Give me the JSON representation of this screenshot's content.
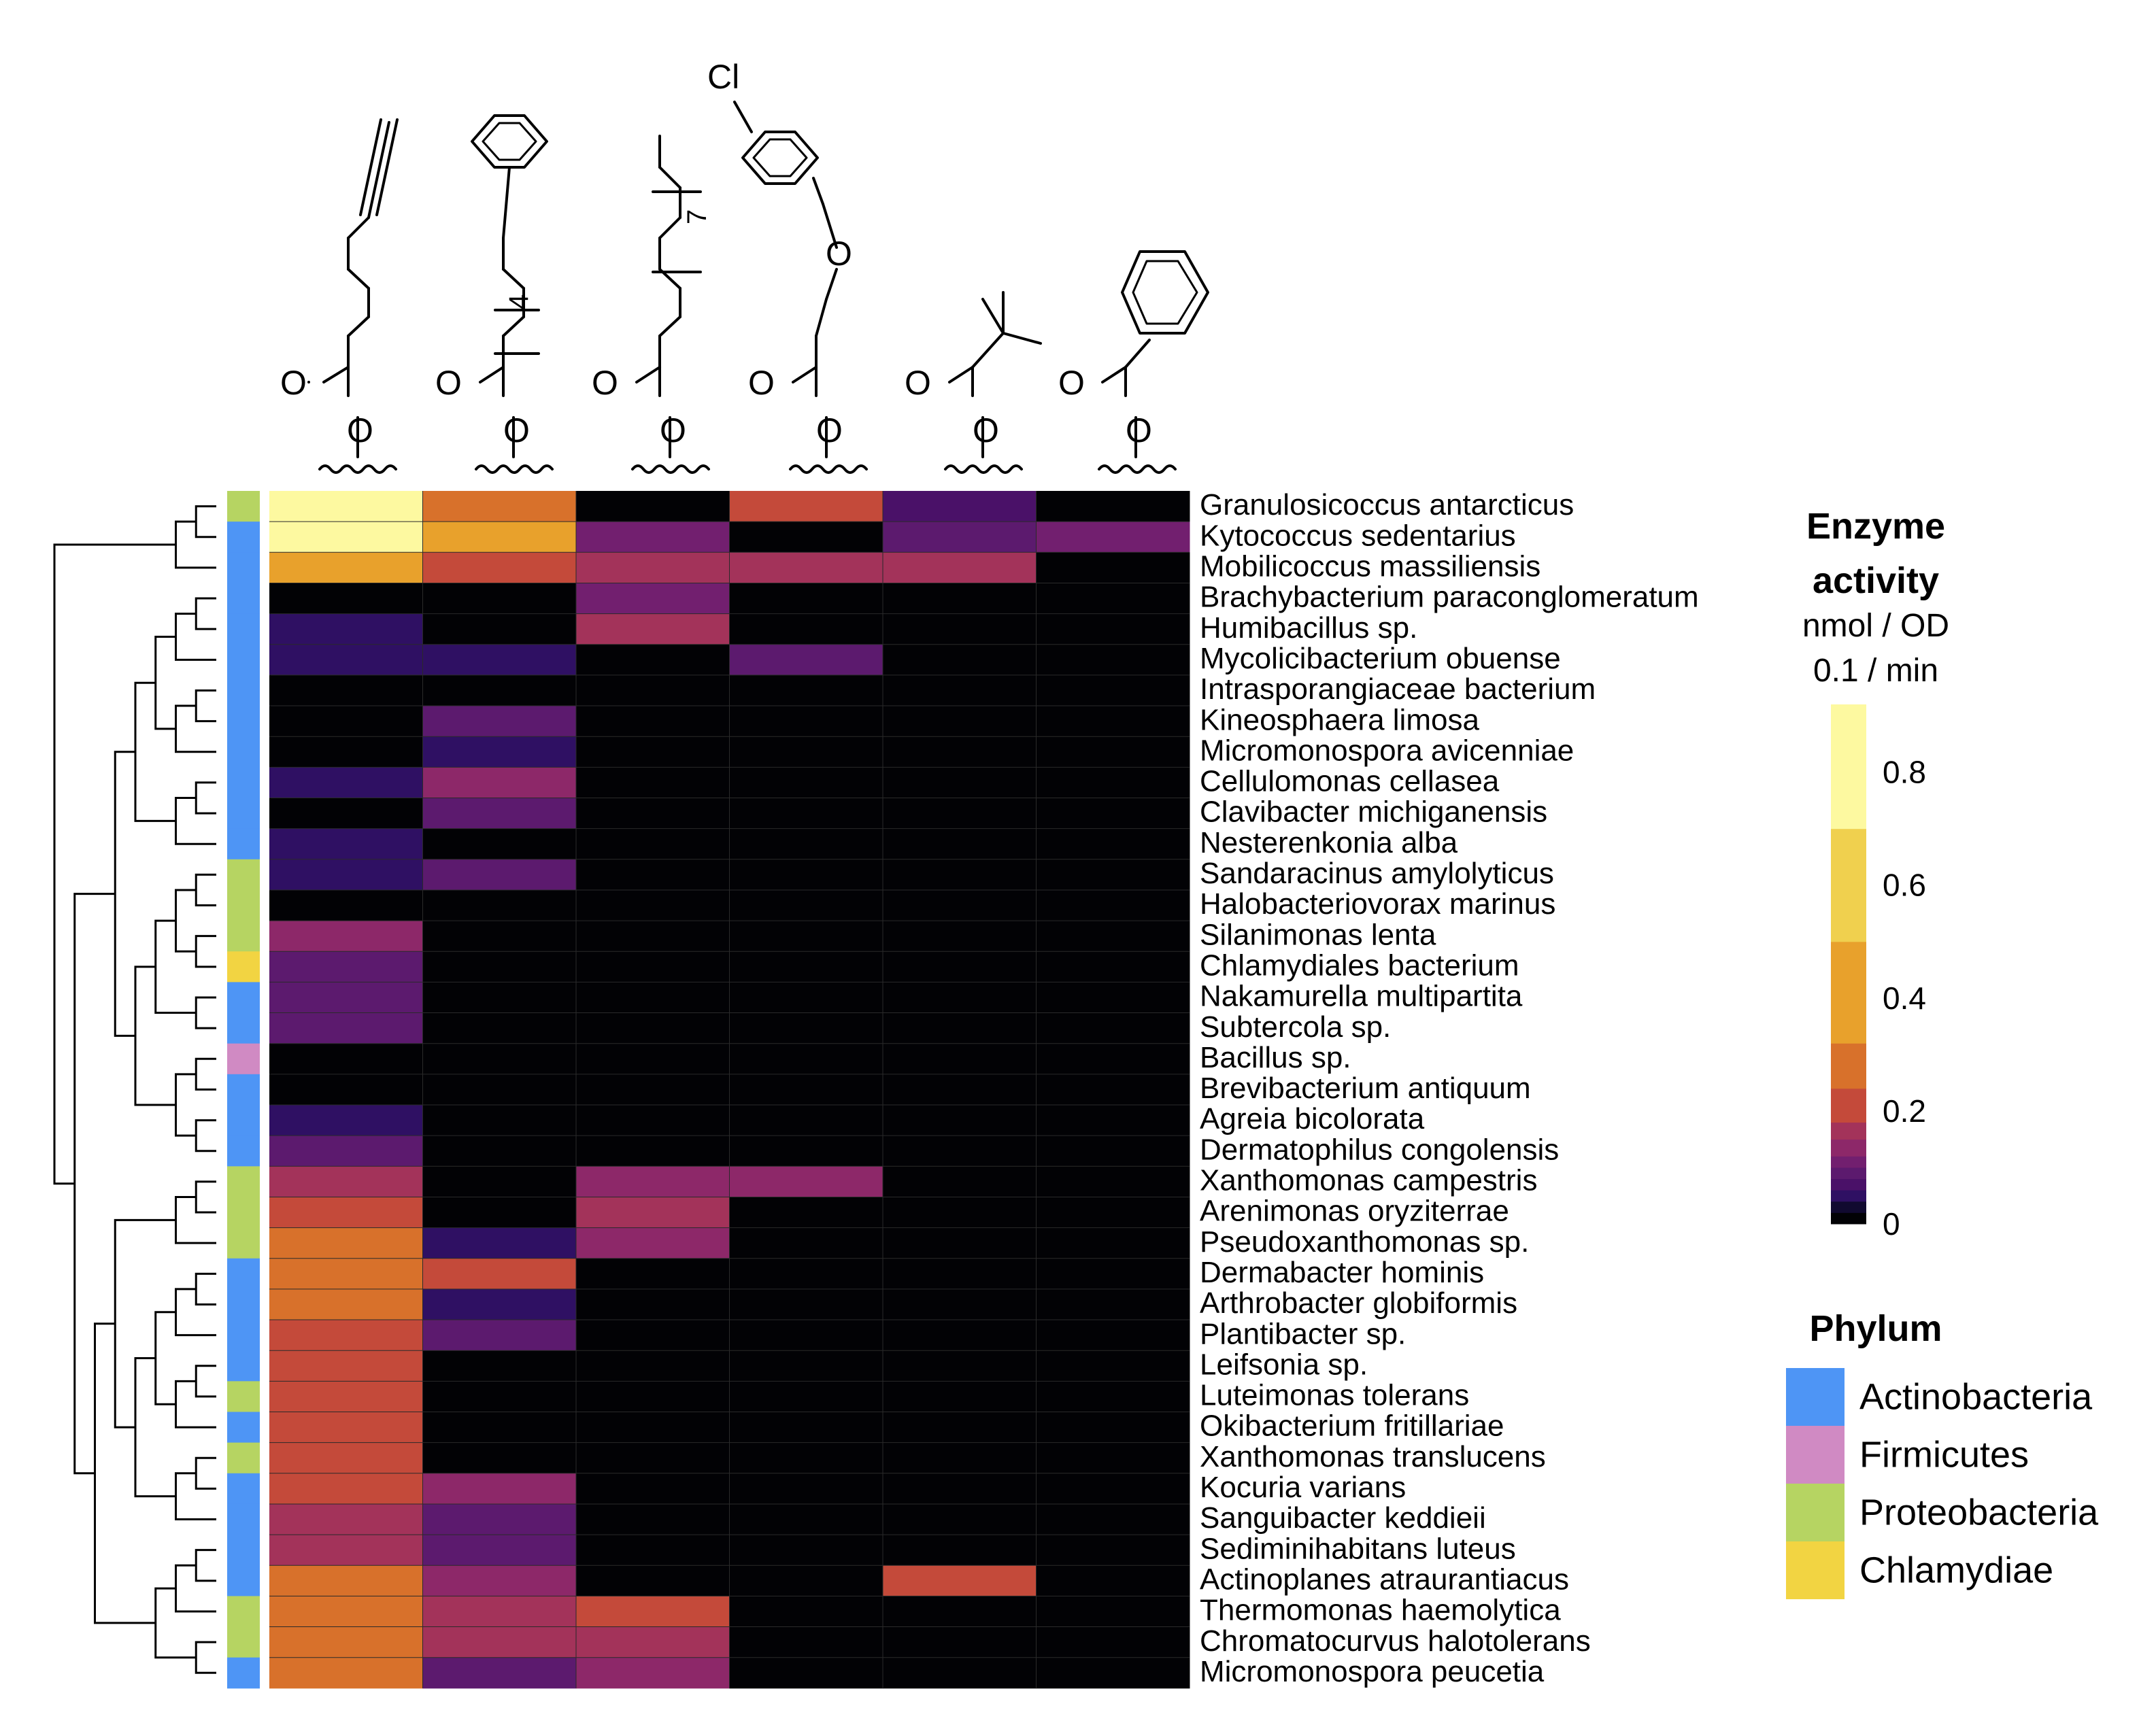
{
  "chart_data": {
    "type": "heatmap",
    "columns": [
      {
        "id": "c1",
        "structure": "hex-5-ynoate"
      },
      {
        "id": "c2",
        "structure": "phenylalkanoate",
        "label": "4"
      },
      {
        "id": "c3",
        "structure": "long-chain alkanoate",
        "label": "7"
      },
      {
        "id": "c4",
        "structure": "4-chlorophenoxy propanoate",
        "label": "Cl"
      },
      {
        "id": "c5",
        "structure": "pivalate"
      },
      {
        "id": "c6",
        "structure": "benzoate"
      }
    ],
    "chem_labels": {
      "O": "O",
      "Cl": "Cl",
      "n4": "4",
      "n7": "7"
    },
    "rows": [
      {
        "name": "Granulosicoccus antarcticus",
        "phylum": "Proteobacteria",
        "values": [
          0.9,
          0.25,
          0,
          0.2,
          0.06,
          0
        ]
      },
      {
        "name": "Kytococcus sedentarius",
        "phylum": "Actinobacteria",
        "values": [
          0.9,
          0.35,
          0.1,
          0,
          0.08,
          0.1
        ]
      },
      {
        "name": "Mobilicoccus massiliensis",
        "phylum": "Actinobacteria",
        "values": [
          0.4,
          0.2,
          0.15,
          0.15,
          0.15,
          0
        ]
      },
      {
        "name": "Brachybacterium paraconglomeratum",
        "phylum": "Actinobacteria",
        "values": [
          0,
          0,
          0.1,
          0,
          0,
          0
        ]
      },
      {
        "name": "Humibacillus sp.",
        "phylum": "Actinobacteria",
        "values": [
          0.04,
          0,
          0.15,
          0,
          0,
          0
        ]
      },
      {
        "name": "Mycolicibacterium obuense",
        "phylum": "Actinobacteria",
        "values": [
          0.04,
          0.04,
          0,
          0.08,
          0,
          0
        ]
      },
      {
        "name": "Intrasporangiaceae bacterium",
        "phylum": "Actinobacteria",
        "values": [
          0,
          0,
          0,
          0,
          0,
          0
        ]
      },
      {
        "name": "Kineosphaera limosa",
        "phylum": "Actinobacteria",
        "values": [
          0,
          0.08,
          0,
          0,
          0,
          0
        ]
      },
      {
        "name": "Micromonospora avicenniae",
        "phylum": "Actinobacteria",
        "values": [
          0,
          0.05,
          0,
          0,
          0,
          0
        ]
      },
      {
        "name": "Cellulomonas cellasea",
        "phylum": "Actinobacteria",
        "values": [
          0.04,
          0.12,
          0,
          0,
          0,
          0
        ]
      },
      {
        "name": "Clavibacter michiganensis",
        "phylum": "Actinobacteria",
        "values": [
          0,
          0.08,
          0,
          0,
          0,
          0
        ]
      },
      {
        "name": "Nesterenkonia alba",
        "phylum": "Actinobacteria",
        "values": [
          0.05,
          0,
          0,
          0,
          0,
          0
        ]
      },
      {
        "name": "Sandaracinus amylolyticus",
        "phylum": "Proteobacteria",
        "values": [
          0.05,
          0.08,
          0,
          0,
          0,
          0
        ]
      },
      {
        "name": "Halobacteriovorax marinus",
        "phylum": "Proteobacteria",
        "values": [
          0,
          0,
          0,
          0,
          0,
          0
        ]
      },
      {
        "name": "Silanimonas lenta",
        "phylum": "Proteobacteria",
        "values": [
          0.12,
          0,
          0,
          0,
          0,
          0
        ]
      },
      {
        "name": "Chlamydiales bacterium",
        "phylum": "Chlamydiae",
        "values": [
          0.08,
          0,
          0,
          0,
          0,
          0
        ]
      },
      {
        "name": "Nakamurella multipartita",
        "phylum": "Actinobacteria",
        "values": [
          0.08,
          0,
          0,
          0,
          0,
          0
        ]
      },
      {
        "name": "Subtercola sp.",
        "phylum": "Actinobacteria",
        "values": [
          0.08,
          0,
          0,
          0,
          0,
          0
        ]
      },
      {
        "name": "Bacillus sp.",
        "phylum": "Firmicutes",
        "values": [
          0,
          0,
          0,
          0,
          0,
          0
        ]
      },
      {
        "name": "Brevibacterium antiquum",
        "phylum": "Actinobacteria",
        "values": [
          0,
          0,
          0,
          0,
          0,
          0
        ]
      },
      {
        "name": "Agreia bicolorata",
        "phylum": "Actinobacteria",
        "values": [
          0.05,
          0,
          0,
          0,
          0,
          0
        ]
      },
      {
        "name": "Dermatophilus congolensis",
        "phylum": "Actinobacteria",
        "values": [
          0.08,
          0,
          0,
          0,
          0,
          0
        ]
      },
      {
        "name": "Xanthomonas campestris",
        "phylum": "Proteobacteria",
        "values": [
          0.15,
          0,
          0.12,
          0.12,
          0,
          0
        ]
      },
      {
        "name": "Arenimonas oryziterrae",
        "phylum": "Proteobacteria",
        "values": [
          0.2,
          0,
          0.15,
          0,
          0,
          0
        ]
      },
      {
        "name": "Pseudoxanthomonas sp.",
        "phylum": "Proteobacteria",
        "values": [
          0.25,
          0.04,
          0.12,
          0,
          0,
          0
        ]
      },
      {
        "name": "Dermabacter hominis",
        "phylum": "Actinobacteria",
        "values": [
          0.25,
          0.2,
          0,
          0,
          0,
          0
        ]
      },
      {
        "name": "Arthrobacter globiformis",
        "phylum": "Actinobacteria",
        "values": [
          0.25,
          0.05,
          0,
          0,
          0,
          0
        ]
      },
      {
        "name": "Plantibacter sp.",
        "phylum": "Actinobacteria",
        "values": [
          0.2,
          0.08,
          0,
          0,
          0,
          0
        ]
      },
      {
        "name": "Leifsonia sp.",
        "phylum": "Actinobacteria",
        "values": [
          0.2,
          0,
          0,
          0,
          0,
          0
        ]
      },
      {
        "name": "Luteimonas tolerans",
        "phylum": "Proteobacteria",
        "values": [
          0.2,
          0,
          0,
          0,
          0,
          0
        ]
      },
      {
        "name": "Okibacterium fritillariae",
        "phylum": "Actinobacteria",
        "values": [
          0.2,
          0,
          0,
          0,
          0,
          0
        ]
      },
      {
        "name": "Xanthomonas translucens",
        "phylum": "Proteobacteria",
        "values": [
          0.2,
          0,
          0,
          0,
          0,
          0
        ]
      },
      {
        "name": "Kocuria varians",
        "phylum": "Actinobacteria",
        "values": [
          0.2,
          0.12,
          0,
          0,
          0,
          0
        ]
      },
      {
        "name": "Sanguibacter keddieii",
        "phylum": "Actinobacteria",
        "values": [
          0.15,
          0.08,
          0,
          0,
          0,
          0
        ]
      },
      {
        "name": "Sediminihabitans luteus",
        "phylum": "Actinobacteria",
        "values": [
          0.15,
          0.08,
          0,
          0,
          0,
          0
        ]
      },
      {
        "name": "Actinoplanes atraurantiacus",
        "phylum": "Actinobacteria",
        "values": [
          0.25,
          0.12,
          0,
          0,
          0.2,
          0
        ]
      },
      {
        "name": "Thermomonas haemolytica",
        "phylum": "Proteobacteria",
        "values": [
          0.25,
          0.15,
          0.2,
          0,
          0,
          0
        ]
      },
      {
        "name": "Chromatocurvus halotolerans",
        "phylum": "Proteobacteria",
        "values": [
          0.25,
          0.15,
          0.15,
          0,
          0,
          0
        ]
      },
      {
        "name": "Micromonospora peucetia",
        "phylum": "Actinobacteria",
        "values": [
          0.25,
          0.08,
          0.12,
          0,
          0,
          0
        ]
      }
    ],
    "dendrogram": {
      "merges": [
        [
          0,
          1
        ],
        [
          2,
          -1
        ],
        [
          3,
          4
        ],
        [
          5,
          -3
        ],
        [
          6,
          7
        ],
        [
          8,
          -5
        ],
        [
          -4,
          -6
        ],
        [
          9,
          10
        ],
        [
          -8,
          11
        ],
        [
          -7,
          -9
        ],
        [
          12,
          13
        ],
        [
          14,
          15
        ],
        [
          -11,
          -12
        ],
        [
          16,
          17
        ],
        [
          -13,
          -14
        ],
        [
          18,
          19
        ],
        [
          20,
          21
        ],
        [
          -16,
          -17
        ],
        [
          -15,
          -18
        ],
        [
          -10,
          -19
        ],
        [
          22,
          23
        ],
        [
          -21,
          24
        ],
        [
          25,
          26
        ],
        [
          -23,
          27
        ],
        [
          28,
          29
        ],
        [
          -25,
          30
        ],
        [
          -24,
          -26
        ],
        [
          31,
          32
        ],
        [
          -28,
          33
        ],
        [
          -27,
          -29
        ],
        [
          -22,
          -30
        ],
        [
          34,
          35
        ],
        [
          -32,
          36
        ],
        [
          37,
          38
        ],
        [
          -34,
          -33
        ],
        [
          -31,
          -35
        ],
        [
          -20,
          -36
        ],
        [
          -2,
          -37
        ]
      ]
    },
    "colorbar": {
      "title_line1": "Enzyme",
      "title_line2": "activity",
      "unit_line1": "nmol / OD",
      "unit_line2": "0.1 / min",
      "ticks": [
        "0.8",
        "0.6",
        "0.4",
        "0.2",
        "0"
      ],
      "tick_values": [
        0.8,
        0.6,
        0.4,
        0.2,
        0
      ],
      "max": 0.92,
      "bins": [
        {
          "from": 0,
          "to": 0.02,
          "color": "#020205"
        },
        {
          "from": 0.02,
          "to": 0.04,
          "color": "#110a30"
        },
        {
          "from": 0.04,
          "to": 0.06,
          "color": "#2f1063"
        },
        {
          "from": 0.06,
          "to": 0.08,
          "color": "#4a1168"
        },
        {
          "from": 0.08,
          "to": 0.1,
          "color": "#5c1a6e"
        },
        {
          "from": 0.1,
          "to": 0.12,
          "color": "#721f6f"
        },
        {
          "from": 0.12,
          "to": 0.15,
          "color": "#8d2869"
        },
        {
          "from": 0.15,
          "to": 0.18,
          "color": "#a3335a"
        },
        {
          "from": 0.18,
          "to": 0.24,
          "color": "#c44a3a"
        },
        {
          "from": 0.24,
          "to": 0.32,
          "color": "#d8712b"
        },
        {
          "from": 0.32,
          "to": 0.5,
          "color": "#e8a12c"
        },
        {
          "from": 0.5,
          "to": 0.7,
          "color": "#f0d04e"
        },
        {
          "from": 0.7,
          "to": 1.0,
          "color": "#fdf9a0"
        }
      ]
    },
    "phylum_legend": {
      "title": "Phylum",
      "items": [
        {
          "name": "Actinobacteria",
          "color": "#4e95f5"
        },
        {
          "name": "Firmicutes",
          "color": "#d08ac3"
        },
        {
          "name": "Proteobacteria",
          "color": "#b6d462"
        },
        {
          "name": "Chlamydiae",
          "color": "#f2d442"
        }
      ]
    }
  }
}
